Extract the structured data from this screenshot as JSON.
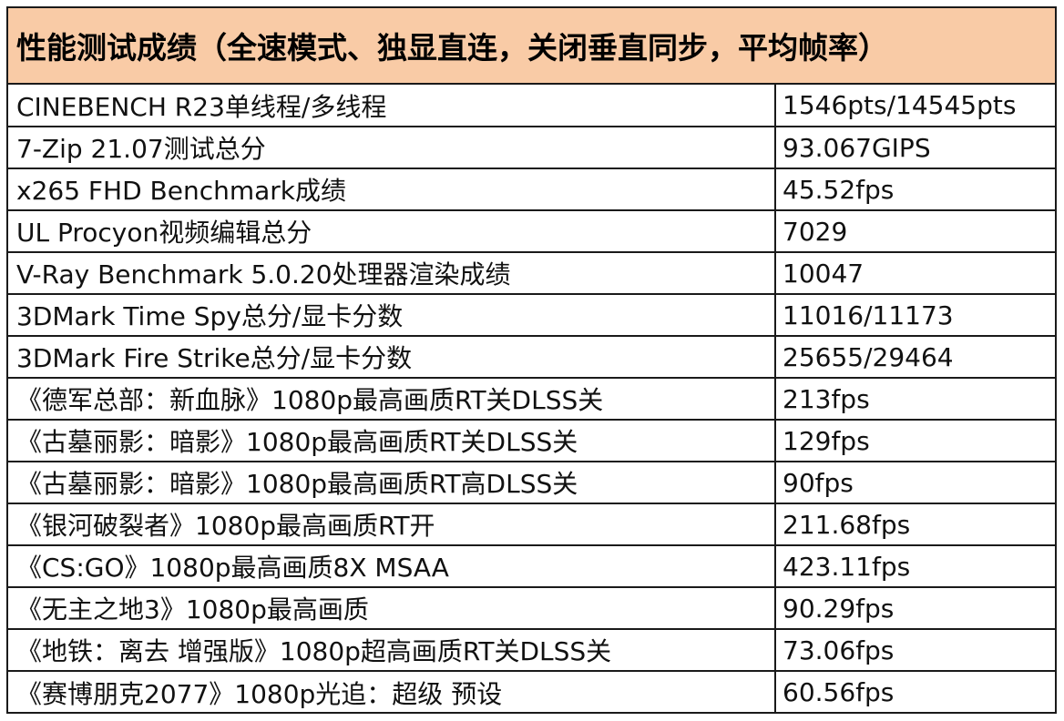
{
  "table": {
    "title": "性能测试成绩（全速模式、独显直连，关闭垂直同步，平均帧率）",
    "title_bg": "#f9cba6",
    "rows": [
      {
        "name": "CINEBENCH R23单线程/多线程",
        "value": "1546pts/14545pts"
      },
      {
        "name": "7-Zip 21.07测试总分",
        "value": "93.067GIPS"
      },
      {
        "name": "x265 FHD Benchmark成绩",
        "value": "45.52fps"
      },
      {
        "name": "UL Procyon视频编辑总分",
        "value": "7029"
      },
      {
        "name": "V-Ray Benchmark 5.0.20处理器渲染成绩",
        "value": "10047"
      },
      {
        "name": "3DMark Time Spy总分/显卡分数",
        "value": "11016/11173"
      },
      {
        "name": "3DMark Fire Strike总分/显卡分数",
        "value": "25655/29464"
      },
      {
        "name": "《德军总部：新血脉》1080p最高画质RT关DLSS关",
        "value": "213fps"
      },
      {
        "name": "《古墓丽影：暗影》1080p最高画质RT关DLSS关",
        "value": "129fps"
      },
      {
        "name": "《古墓丽影：暗影》1080p最高画质RT高DLSS关",
        "value": "90fps"
      },
      {
        "name": "《银河破裂者》1080p最高画质RT开",
        "value": "211.68fps"
      },
      {
        "name": "《CS:GO》1080p最高画质8X MSAA",
        "value": "423.11fps"
      },
      {
        "name": "《无主之地3》1080p最高画质",
        "value": "90.29fps"
      },
      {
        "name": "《地铁：离去 增强版》1080p超高画质RT关DLSS关",
        "value": "73.06fps"
      },
      {
        "name": "《赛博朋克2077》1080p光追：超级 预设",
        "value": "60.56fps"
      }
    ]
  }
}
